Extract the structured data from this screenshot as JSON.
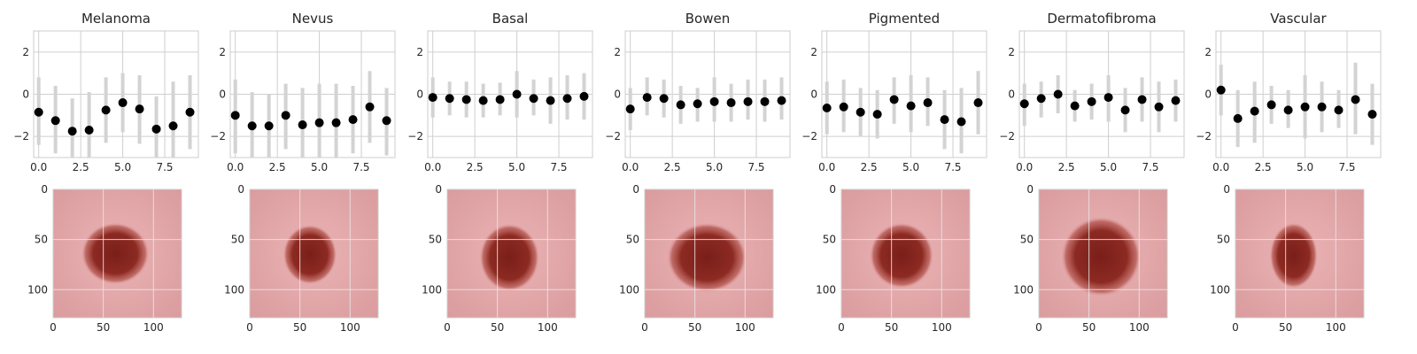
{
  "chart_data": {
    "type": "scatter",
    "colors": {
      "marker": "#000000",
      "error_bar": "#d3d3d3",
      "grid": "#cfcfcf",
      "frame": "#cccccc"
    },
    "plots": [
      {
        "title": "Melanoma",
        "x": [
          0,
          1,
          2,
          3,
          4,
          5,
          6,
          7,
          8,
          9
        ],
        "y": [
          -0.85,
          -1.25,
          -1.75,
          -1.7,
          -0.75,
          -0.4,
          -0.7,
          -1.65,
          -1.5,
          -0.85
        ],
        "y_low": [
          -2.4,
          -2.8,
          -3.0,
          -3.0,
          -2.3,
          -1.8,
          -2.35,
          -3.0,
          -3.0,
          -2.6
        ],
        "y_high": [
          0.8,
          0.4,
          -0.2,
          0.1,
          0.8,
          1.0,
          0.9,
          -0.1,
          0.6,
          0.9
        ],
        "xlim": [
          -0.3,
          9.5
        ],
        "ylim": [
          -3,
          3
        ],
        "xticks": [
          "0.0",
          "2.5",
          "5.0",
          "7.5"
        ],
        "xtick_values": [
          0,
          2.5,
          5,
          7.5
        ],
        "yticks": [
          "−2",
          "0",
          "2"
        ],
        "ytick_values": [
          -2,
          0,
          2
        ],
        "grid": true
      },
      {
        "title": "Nevus",
        "x": [
          0,
          1,
          2,
          3,
          4,
          5,
          6,
          7,
          8,
          9
        ],
        "y": [
          -1.0,
          -1.5,
          -1.5,
          -1.0,
          -1.45,
          -1.35,
          -1.35,
          -1.2,
          -0.6,
          -1.25
        ],
        "y_low": [
          -2.8,
          -3.0,
          -3.0,
          -2.6,
          -3.0,
          -3.0,
          -3.0,
          -2.8,
          -2.3,
          -2.9
        ],
        "y_high": [
          0.7,
          0.1,
          0.0,
          0.5,
          0.3,
          0.5,
          0.5,
          0.4,
          1.1,
          0.3
        ],
        "xlim": [
          -0.3,
          9.5
        ],
        "ylim": [
          -3,
          3
        ],
        "xticks": [
          "0.0",
          "2.5",
          "5.0",
          "7.5"
        ],
        "xtick_values": [
          0,
          2.5,
          5,
          7.5
        ],
        "yticks": [
          "−2",
          "0",
          "2"
        ],
        "ytick_values": [
          -2,
          0,
          2
        ],
        "grid": true
      },
      {
        "title": "Basal",
        "x": [
          0,
          1,
          2,
          3,
          4,
          5,
          6,
          7,
          8,
          9
        ],
        "y": [
          -0.15,
          -0.2,
          -0.25,
          -0.3,
          -0.25,
          0.0,
          -0.2,
          -0.3,
          -0.2,
          -0.1
        ],
        "y_low": [
          -1.1,
          -1.0,
          -1.1,
          -1.1,
          -1.0,
          -1.1,
          -1.0,
          -1.4,
          -1.2,
          -1.2
        ],
        "y_high": [
          0.8,
          0.6,
          0.6,
          0.5,
          0.55,
          1.1,
          0.7,
          0.8,
          0.9,
          1.0
        ],
        "xlim": [
          -0.3,
          9.5
        ],
        "ylim": [
          -3,
          3
        ],
        "xticks": [
          "0.0",
          "2.5",
          "5.0",
          "7.5"
        ],
        "xtick_values": [
          0,
          2.5,
          5,
          7.5
        ],
        "yticks": [
          "−2",
          "0",
          "2"
        ],
        "ytick_values": [
          -2,
          0,
          2
        ],
        "grid": true
      },
      {
        "title": "Bowen",
        "x": [
          0,
          1,
          2,
          3,
          4,
          5,
          6,
          7,
          8,
          9
        ],
        "y": [
          -0.7,
          -0.15,
          -0.2,
          -0.5,
          -0.45,
          -0.35,
          -0.4,
          -0.35,
          -0.35,
          -0.3
        ],
        "y_low": [
          -1.7,
          -1.0,
          -1.1,
          -1.4,
          -1.3,
          -1.3,
          -1.3,
          -1.2,
          -1.3,
          -1.2
        ],
        "y_high": [
          0.3,
          0.8,
          0.7,
          0.4,
          0.3,
          0.8,
          0.5,
          0.7,
          0.7,
          0.8
        ],
        "xlim": [
          -0.3,
          9.5
        ],
        "ylim": [
          -3,
          3
        ],
        "xticks": [
          "0.0",
          "2.5",
          "5.0",
          "7.5"
        ],
        "xtick_values": [
          0,
          2.5,
          5,
          7.5
        ],
        "yticks": [
          "−2",
          "0",
          "2"
        ],
        "ytick_values": [
          -2,
          0,
          2
        ],
        "grid": true
      },
      {
        "title": "Pigmented",
        "x": [
          0,
          1,
          2,
          3,
          4,
          5,
          6,
          7,
          8,
          9
        ],
        "y": [
          -0.65,
          -0.6,
          -0.85,
          -0.95,
          -0.25,
          -0.55,
          -0.4,
          -1.2,
          -1.3,
          -0.4
        ],
        "y_low": [
          -1.9,
          -1.8,
          -2.0,
          -2.1,
          -1.4,
          -1.8,
          -1.5,
          -2.6,
          -2.8,
          -1.9
        ],
        "y_high": [
          0.6,
          0.7,
          0.3,
          0.2,
          0.8,
          0.9,
          0.8,
          0.2,
          0.3,
          1.1
        ],
        "xlim": [
          -0.3,
          9.5
        ],
        "ylim": [
          -3,
          3
        ],
        "xticks": [
          "0.0",
          "2.5",
          "5.0",
          "7.5"
        ],
        "xtick_values": [
          0,
          2.5,
          5,
          7.5
        ],
        "yticks": [
          "−2",
          "0",
          "2"
        ],
        "ytick_values": [
          -2,
          0,
          2
        ],
        "grid": true
      },
      {
        "title": "Dermatofibroma",
        "x": [
          0,
          1,
          2,
          3,
          4,
          5,
          6,
          7,
          8,
          9
        ],
        "y": [
          -0.45,
          -0.2,
          0.0,
          -0.55,
          -0.35,
          -0.15,
          -0.75,
          -0.25,
          -0.6,
          -0.3
        ],
        "y_low": [
          -1.5,
          -1.1,
          -0.9,
          -1.3,
          -1.2,
          -1.3,
          -1.8,
          -1.3,
          -1.8,
          -1.3
        ],
        "y_high": [
          0.5,
          0.6,
          0.9,
          0.2,
          0.5,
          0.9,
          0.3,
          0.8,
          0.6,
          0.7
        ],
        "xlim": [
          -0.3,
          9.5
        ],
        "ylim": [
          -3,
          3
        ],
        "xticks": [
          "0.0",
          "2.5",
          "5.0",
          "7.5"
        ],
        "xtick_values": [
          0,
          2.5,
          5,
          7.5
        ],
        "yticks": [
          "−2",
          "0",
          "2"
        ],
        "ytick_values": [
          -2,
          0,
          2
        ],
        "grid": true
      },
      {
        "title": "Vascular",
        "x": [
          0,
          1,
          2,
          3,
          4,
          5,
          6,
          7,
          8,
          9
        ],
        "y": [
          0.2,
          -1.15,
          -0.8,
          -0.5,
          -0.75,
          -0.6,
          -0.6,
          -0.75,
          -0.25,
          -0.95
        ],
        "y_low": [
          -1.0,
          -2.5,
          -2.3,
          -1.4,
          -1.6,
          -2.1,
          -1.8,
          -1.6,
          -1.9,
          -2.4
        ],
        "y_high": [
          1.4,
          0.2,
          0.6,
          0.4,
          0.2,
          0.9,
          0.6,
          0.2,
          1.5,
          0.5
        ],
        "xlim": [
          -0.3,
          9.5
        ],
        "ylim": [
          -3,
          3
        ],
        "xticks": [
          "0.0",
          "2.5",
          "5.0",
          "7.5"
        ],
        "xtick_values": [
          0,
          2.5,
          5,
          7.5
        ],
        "yticks": [
          "−2",
          "0",
          "2"
        ],
        "ytick_values": [
          -2,
          0,
          2
        ],
        "grid": true
      }
    ],
    "images": {
      "type": "image",
      "extent": [
        0,
        128
      ],
      "xticks": [
        "0",
        "50",
        "100"
      ],
      "xtick_values": [
        0,
        50,
        100
      ],
      "yticks": [
        "0",
        "50",
        "100"
      ],
      "ytick_values": [
        0,
        50,
        100
      ],
      "skin_color": "#e7a8ac",
      "lesion_color": "#8c2a22",
      "lesions": [
        {
          "name": "Melanoma",
          "cx": 62,
          "cy": 64,
          "rx": 34,
          "ry": 31
        },
        {
          "name": "Nevus",
          "cx": 60,
          "cy": 65,
          "rx": 27,
          "ry": 30
        },
        {
          "name": "Basal",
          "cx": 62,
          "cy": 68,
          "rx": 30,
          "ry": 34
        },
        {
          "name": "Bowen",
          "cx": 62,
          "cy": 68,
          "rx": 40,
          "ry": 35
        },
        {
          "name": "Pigmented",
          "cx": 60,
          "cy": 66,
          "rx": 32,
          "ry": 33
        },
        {
          "name": "Dermatofibroma",
          "cx": 62,
          "cy": 67,
          "rx": 40,
          "ry": 40
        },
        {
          "name": "Vascular",
          "cx": 58,
          "cy": 66,
          "rx": 24,
          "ry": 33
        }
      ]
    }
  }
}
